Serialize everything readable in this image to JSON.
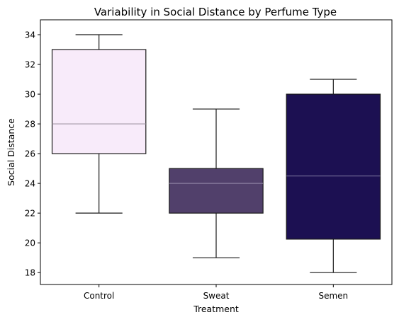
{
  "chart_data": {
    "type": "box",
    "title": "Variability in Social Distance by Perfume Type",
    "xlabel": "Treatment",
    "ylabel": "Social Distance",
    "ylim": [
      17.2,
      35.0
    ],
    "yticks": [
      18,
      20,
      22,
      24,
      26,
      28,
      30,
      32,
      34
    ],
    "grid": false,
    "categories": [
      "Control",
      "Sweat",
      "Semen"
    ],
    "boxes": [
      {
        "category": "Control",
        "whisker_low": 22,
        "q1": 26,
        "median": 28,
        "q3": 33,
        "whisker_high": 34,
        "fill": "#f8ebfa",
        "median_color": "#a398a6"
      },
      {
        "category": "Sweat",
        "whisker_low": 19,
        "q1": 22,
        "median": 24,
        "q3": 25,
        "whisker_high": 29,
        "fill": "#51406b",
        "median_color": "#8a7ea0"
      },
      {
        "category": "Semen",
        "whisker_low": 18,
        "q1": 20.25,
        "median": 24.5,
        "q3": 30,
        "whisker_high": 31,
        "fill": "#1c1052",
        "median_color": "#6a6390"
      }
    ]
  }
}
